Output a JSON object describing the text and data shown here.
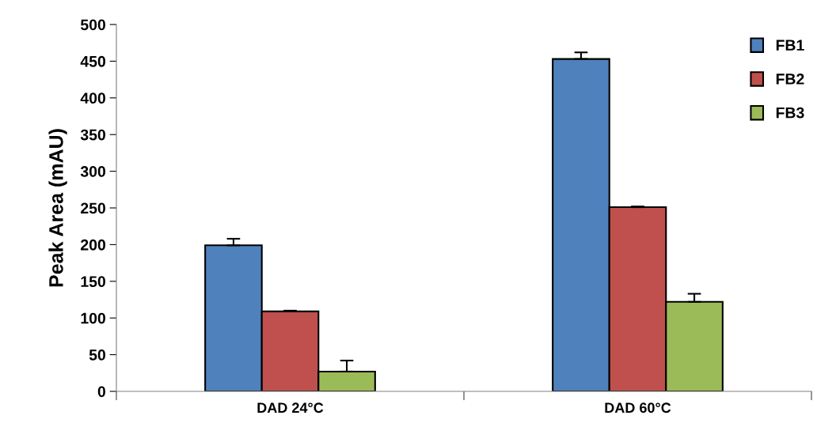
{
  "chart_data": {
    "type": "bar",
    "ylabel": "Peak Area (mAU)",
    "categories": [
      "DAD 24°C",
      "DAD 60°C"
    ],
    "series": [
      {
        "name": "FB1",
        "color": "#4f81bd",
        "values": [
          199,
          453
        ],
        "errors": [
          [
            199,
            208
          ],
          [
            453,
            462
          ]
        ]
      },
      {
        "name": "FB2",
        "color": "#c0504d",
        "values": [
          109,
          251
        ],
        "errors": [
          [
            109,
            110
          ],
          [
            251,
            252
          ]
        ]
      },
      {
        "name": "FB3",
        "color": "#9bbb59",
        "values": [
          27,
          122
        ],
        "errors": [
          [
            27,
            42
          ],
          [
            122,
            133
          ]
        ]
      }
    ],
    "ylim": [
      0,
      500
    ],
    "yticks": [
      0,
      50,
      100,
      150,
      200,
      250,
      300,
      350,
      400,
      450,
      500
    ],
    "grid": false,
    "legend": "top right"
  }
}
